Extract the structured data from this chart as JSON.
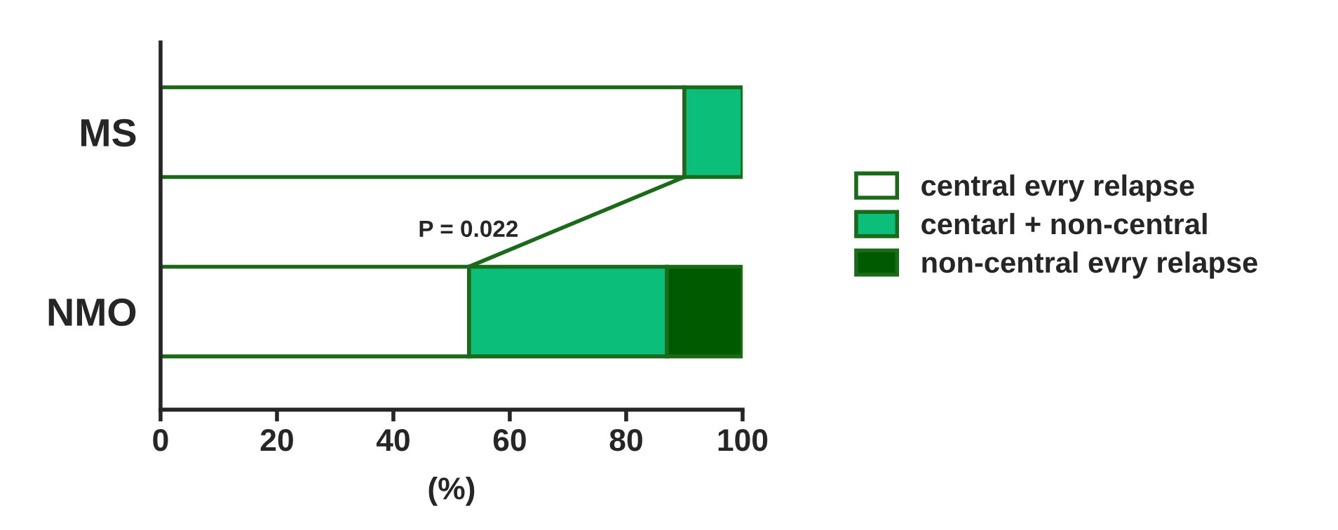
{
  "chart_data": {
    "type": "bar",
    "orientation": "horizontal",
    "stacked": true,
    "categories": [
      "MS",
      "NMO"
    ],
    "series": [
      {
        "name": "central evry relapse",
        "color": "#ffffff",
        "values": [
          90,
          53
        ]
      },
      {
        "name": "centarl + non-central",
        "color": "#0bbf7a",
        "values": [
          10,
          34
        ]
      },
      {
        "name": "non-central evry relapse",
        "color": "#005a00",
        "values": [
          null,
          13
        ]
      }
    ],
    "xlabel": "(%)",
    "xlim": [
      0,
      100
    ],
    "xticks": [
      0,
      20,
      40,
      60,
      80,
      100
    ],
    "annotations": [
      "P = 0.022"
    ],
    "legend": "right",
    "grid": false
  }
}
